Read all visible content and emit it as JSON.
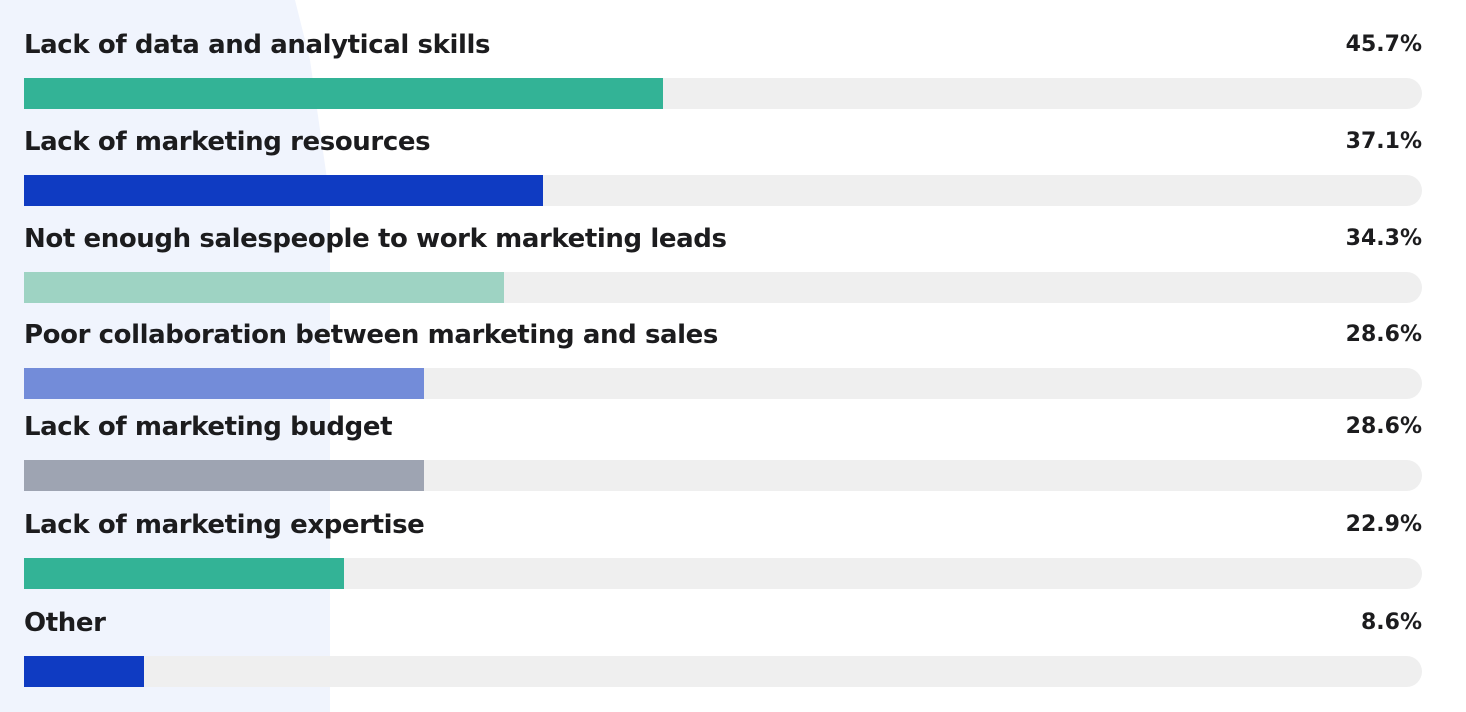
{
  "chart_data": {
    "type": "bar",
    "orientation": "horizontal",
    "title": "",
    "xlabel": "",
    "ylabel": "",
    "xlim": [
      0,
      100
    ],
    "unit": "%",
    "grid": false,
    "categories": [
      "Lack of data and analytical skills",
      "Lack of marketing resources",
      "Not enough salespeople to work marketing leads",
      "Poor collaboration between marketing and sales",
      "Lack of marketing budget",
      "Lack of marketing expertise",
      "Other"
    ],
    "values": [
      45.7,
      37.1,
      34.3,
      28.6,
      28.6,
      22.9,
      8.6
    ],
    "value_labels": [
      "45.7%",
      "37.1%",
      "34.3%",
      "28.6%",
      "28.6%",
      "22.9%",
      "8.6%"
    ],
    "colors": [
      "#33b396",
      "#0f3bc2",
      "#9ed3c3",
      "#738cd9",
      "#9ea4b2",
      "#33b396",
      "#0f3bc2"
    ],
    "track_color": "#efefef",
    "background_shape_color": "#f0f4fd"
  }
}
